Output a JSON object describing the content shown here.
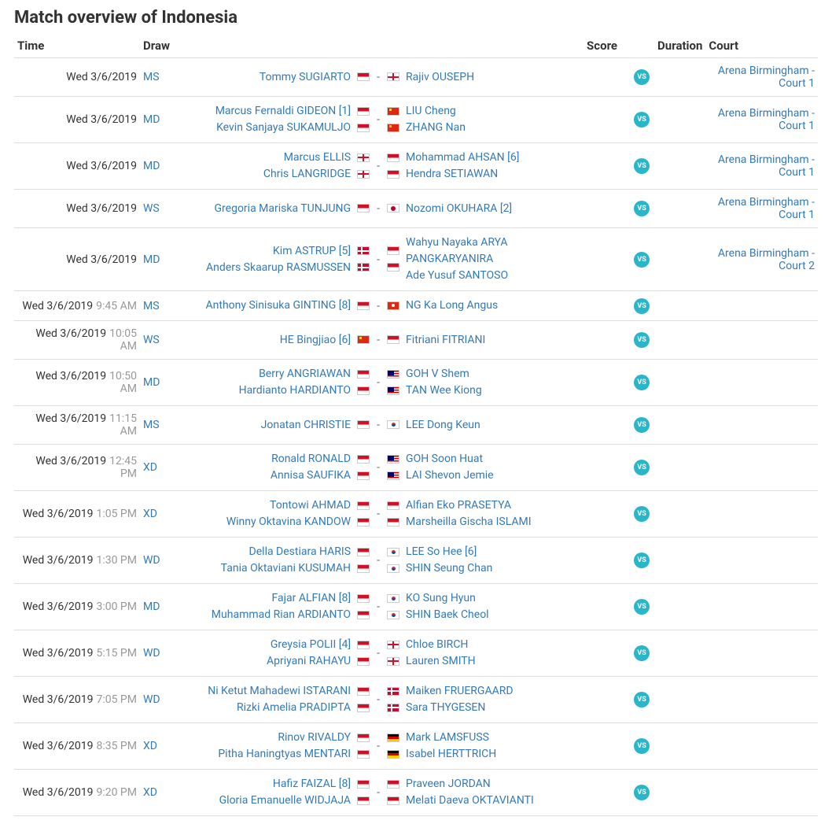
{
  "title": "Match overview of Indonesia",
  "headers": {
    "time": "Time",
    "draw": "Draw",
    "score": "Score",
    "duration": "Duration",
    "court": "Court"
  },
  "vs_label": "VS",
  "colors": {
    "link": "#337ab7",
    "muted": "#999",
    "vs_bg": "#29b6c9"
  },
  "flags": {
    "INA": "f-ina",
    "ENG": "f-eng",
    "CHN": "f-chn",
    "JPN": "f-jpn",
    "DEN": "f-den",
    "HKG": "f-hkg",
    "MAS": "f-mas",
    "KOR": "f-kor",
    "GER": "f-ger"
  },
  "matches": [
    {
      "date": "Wed 3/6/2019",
      "time": "",
      "draw": "MS",
      "p1": [
        {
          "name": "Tommy SUGIARTO",
          "flag": "INA"
        }
      ],
      "p2": [
        {
          "name": "Rajiv OUSEPH",
          "flag": "ENG"
        }
      ],
      "court": "Arena Birmingham - Court 1"
    },
    {
      "date": "Wed 3/6/2019",
      "time": "",
      "draw": "MD",
      "p1": [
        {
          "name": "Marcus Fernaldi GIDEON [1]",
          "flag": "INA"
        },
        {
          "name": "Kevin Sanjaya SUKAMULJO",
          "flag": "INA"
        }
      ],
      "p2": [
        {
          "name": "LIU Cheng",
          "flag": "CHN"
        },
        {
          "name": "ZHANG Nan",
          "flag": "CHN"
        }
      ],
      "court": "Arena Birmingham - Court 1"
    },
    {
      "date": "Wed 3/6/2019",
      "time": "",
      "draw": "MD",
      "p1": [
        {
          "name": "Marcus ELLIS",
          "flag": "ENG"
        },
        {
          "name": "Chris LANGRIDGE",
          "flag": "ENG"
        }
      ],
      "p2": [
        {
          "name": "Mohammad AHSAN [6]",
          "flag": "INA"
        },
        {
          "name": "Hendra SETIAWAN",
          "flag": "INA"
        }
      ],
      "court": "Arena Birmingham - Court 1"
    },
    {
      "date": "Wed 3/6/2019",
      "time": "",
      "draw": "WS",
      "p1": [
        {
          "name": "Gregoria Mariska TUNJUNG",
          "flag": "INA"
        }
      ],
      "p2": [
        {
          "name": "Nozomi OKUHARA [2]",
          "flag": "JPN"
        }
      ],
      "court": "Arena Birmingham - Court 1"
    },
    {
      "date": "Wed 3/6/2019",
      "time": "",
      "draw": "MD",
      "p1": [
        {
          "name": "Kim ASTRUP [5]",
          "flag": "DEN"
        },
        {
          "name": "Anders Skaarup RASMUSSEN",
          "flag": "DEN"
        }
      ],
      "p2": [
        {
          "name": "Wahyu Nayaka ARYA PANGKARYANIRA",
          "flag": "INA"
        },
        {
          "name": "Ade Yusuf SANTOSO",
          "flag": "INA"
        }
      ],
      "court": "Arena Birmingham - Court 2"
    },
    {
      "date": "Wed 3/6/2019",
      "time": "9:45 AM",
      "draw": "MS",
      "p1": [
        {
          "name": "Anthony Sinisuka GINTING [8]",
          "flag": "INA"
        }
      ],
      "p2": [
        {
          "name": "NG Ka Long Angus",
          "flag": "HKG"
        }
      ],
      "court": ""
    },
    {
      "date": "Wed 3/6/2019",
      "time": "10:05 AM",
      "draw": "WS",
      "p1": [
        {
          "name": "HE Bingjiao [6]",
          "flag": "CHN"
        }
      ],
      "p2": [
        {
          "name": "Fitriani FITRIANI",
          "flag": "INA"
        }
      ],
      "court": ""
    },
    {
      "date": "Wed 3/6/2019",
      "time": "10:50 AM",
      "draw": "MD",
      "p1": [
        {
          "name": "Berry ANGRIAWAN",
          "flag": "INA"
        },
        {
          "name": "Hardianto HARDIANTO",
          "flag": "INA"
        }
      ],
      "p2": [
        {
          "name": "GOH V Shem",
          "flag": "MAS"
        },
        {
          "name": "TAN Wee Kiong",
          "flag": "MAS"
        }
      ],
      "court": ""
    },
    {
      "date": "Wed 3/6/2019",
      "time": "11:15 AM",
      "draw": "MS",
      "p1": [
        {
          "name": "Jonatan CHRISTIE",
          "flag": "INA"
        }
      ],
      "p2": [
        {
          "name": "LEE Dong Keun",
          "flag": "KOR"
        }
      ],
      "court": ""
    },
    {
      "date": "Wed 3/6/2019",
      "time": "12:45 PM",
      "draw": "XD",
      "p1": [
        {
          "name": "Ronald RONALD",
          "flag": "INA"
        },
        {
          "name": "Annisa SAUFIKA",
          "flag": "INA"
        }
      ],
      "p2": [
        {
          "name": "GOH Soon Huat",
          "flag": "MAS"
        },
        {
          "name": "LAI Shevon Jemie",
          "flag": "MAS"
        }
      ],
      "court": ""
    },
    {
      "date": "Wed 3/6/2019",
      "time": "1:05 PM",
      "draw": "XD",
      "p1": [
        {
          "name": "Tontowi AHMAD",
          "flag": "INA"
        },
        {
          "name": "Winny Oktavina KANDOW",
          "flag": "INA"
        }
      ],
      "p2": [
        {
          "name": "Alfian Eko PRASETYA",
          "flag": "INA"
        },
        {
          "name": "Marsheilla Gischa ISLAMI",
          "flag": "INA"
        }
      ],
      "court": ""
    },
    {
      "date": "Wed 3/6/2019",
      "time": "1:30 PM",
      "draw": "WD",
      "p1": [
        {
          "name": "Della Destiara HARIS",
          "flag": "INA"
        },
        {
          "name": "Tania Oktaviani KUSUMAH",
          "flag": "INA"
        }
      ],
      "p2": [
        {
          "name": "LEE So Hee [6]",
          "flag": "KOR"
        },
        {
          "name": "SHIN Seung Chan",
          "flag": "KOR"
        }
      ],
      "court": ""
    },
    {
      "date": "Wed 3/6/2019",
      "time": "3:00 PM",
      "draw": "MD",
      "p1": [
        {
          "name": "Fajar ALFIAN [8]",
          "flag": "INA"
        },
        {
          "name": "Muhammad Rian ARDIANTO",
          "flag": "INA"
        }
      ],
      "p2": [
        {
          "name": "KO Sung Hyun",
          "flag": "KOR"
        },
        {
          "name": "SHIN Baek Cheol",
          "flag": "KOR"
        }
      ],
      "court": ""
    },
    {
      "date": "Wed 3/6/2019",
      "time": "5:15 PM",
      "draw": "WD",
      "p1": [
        {
          "name": "Greysia POLII [4]",
          "flag": "INA"
        },
        {
          "name": "Apriyani RAHAYU",
          "flag": "INA"
        }
      ],
      "p2": [
        {
          "name": "Chloe BIRCH",
          "flag": "ENG"
        },
        {
          "name": "Lauren SMITH",
          "flag": "ENG"
        }
      ],
      "court": ""
    },
    {
      "date": "Wed 3/6/2019",
      "time": "7:05 PM",
      "draw": "WD",
      "p1": [
        {
          "name": "Ni Ketut Mahadewi ISTARANI",
          "flag": "INA"
        },
        {
          "name": "Rizki Amelia PRADIPTA",
          "flag": "INA"
        }
      ],
      "p2": [
        {
          "name": "Maiken FRUERGAARD",
          "flag": "DEN"
        },
        {
          "name": "Sara THYGESEN",
          "flag": "DEN"
        }
      ],
      "court": ""
    },
    {
      "date": "Wed 3/6/2019",
      "time": "8:35 PM",
      "draw": "XD",
      "p1": [
        {
          "name": "Rinov RIVALDY",
          "flag": "INA"
        },
        {
          "name": "Pitha Haningtyas MENTARI",
          "flag": "INA"
        }
      ],
      "p2": [
        {
          "name": "Mark LAMSFUSS",
          "flag": "GER"
        },
        {
          "name": "Isabel HERTTRICH",
          "flag": "GER"
        }
      ],
      "court": ""
    },
    {
      "date": "Wed 3/6/2019",
      "time": "9:20 PM",
      "draw": "XD",
      "p1": [
        {
          "name": "Hafiz FAIZAL [8]",
          "flag": "INA"
        },
        {
          "name": "Gloria Emanuelle WIDJAJA",
          "flag": "INA"
        }
      ],
      "p2": [
        {
          "name": "Praveen JORDAN",
          "flag": "INA"
        },
        {
          "name": "Melati Daeva OKTAVIANTI",
          "flag": "INA"
        }
      ],
      "court": ""
    }
  ]
}
